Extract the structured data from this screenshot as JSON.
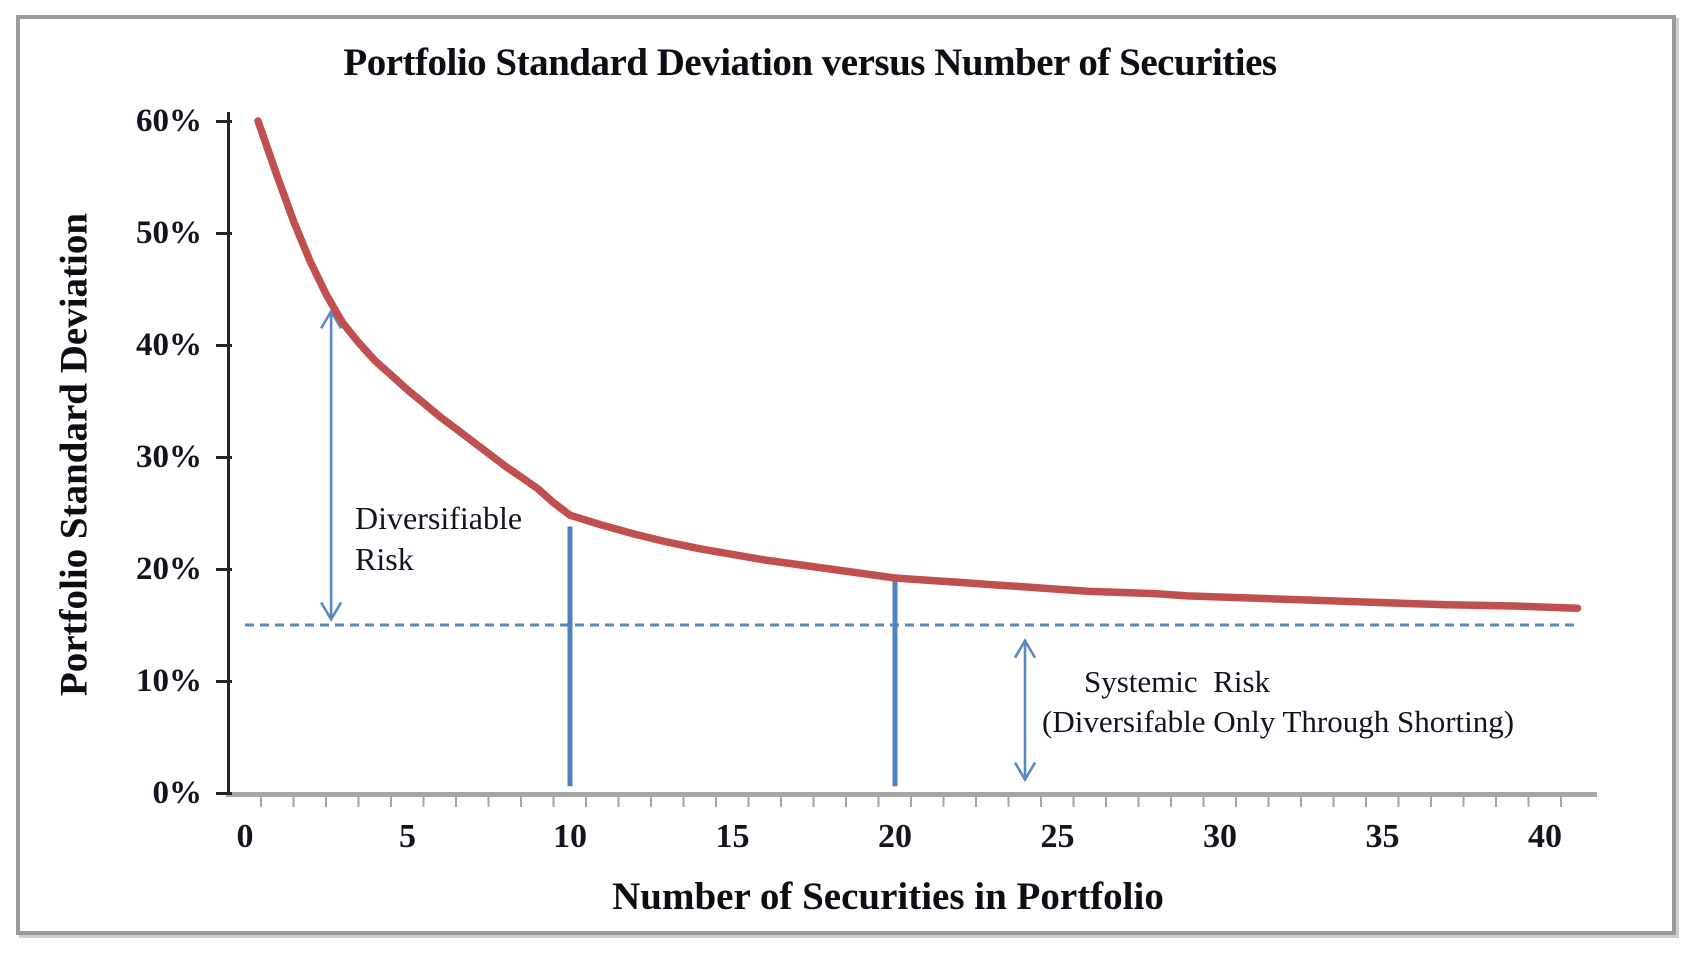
{
  "chart_data": {
    "type": "line",
    "title": "Portfolio Standard Deviation versus Number of Securities",
    "xlabel": "Number of Securities in Portfolio",
    "ylabel": "Portfolio Standard Deviation",
    "xlim": [
      0,
      41.6
    ],
    "ylim": [
      0,
      60
    ],
    "grid": false,
    "legend": false,
    "x_ticks": [
      0,
      5,
      10,
      15,
      20,
      25,
      30,
      35,
      40
    ],
    "x_tick_labels": [
      "0",
      "5",
      "10",
      "15",
      "20",
      "25",
      "30",
      "35",
      "40"
    ],
    "y_ticks": [
      0,
      10,
      20,
      30,
      40,
      50,
      60
    ],
    "y_tick_labels": [
      "0%",
      "10%",
      "20%",
      "30%",
      "40%",
      "50%",
      "60%"
    ],
    "series": [
      {
        "name": "Portfolio standard deviation (%)",
        "color": "#c0504d",
        "points": [
          [
            0.4,
            60.0
          ],
          [
            1,
            55.0
          ],
          [
            1.5,
            51.0
          ],
          [
            2,
            47.5
          ],
          [
            2.5,
            44.5
          ],
          [
            3,
            42.0
          ],
          [
            3.5,
            40.2
          ],
          [
            4,
            38.6
          ],
          [
            4.5,
            37.3
          ],
          [
            5,
            36.0
          ],
          [
            5.5,
            34.8
          ],
          [
            6,
            33.6
          ],
          [
            6.5,
            32.5
          ],
          [
            7,
            31.4
          ],
          [
            7.5,
            30.3
          ],
          [
            8,
            29.2
          ],
          [
            8.5,
            28.2
          ],
          [
            9,
            27.2
          ],
          [
            9.5,
            25.9
          ],
          [
            10,
            24.8
          ],
          [
            11,
            23.9
          ],
          [
            12,
            23.1
          ],
          [
            13,
            22.4
          ],
          [
            14,
            21.8
          ],
          [
            15,
            21.3
          ],
          [
            16,
            20.8
          ],
          [
            17,
            20.4
          ],
          [
            18,
            20.0
          ],
          [
            19,
            19.6
          ],
          [
            20,
            19.2
          ],
          [
            21,
            19.0
          ],
          [
            22,
            18.8
          ],
          [
            23,
            18.6
          ],
          [
            24,
            18.4
          ],
          [
            25,
            18.2
          ],
          [
            26,
            18.0
          ],
          [
            27,
            17.9
          ],
          [
            28,
            17.8
          ],
          [
            29,
            17.6
          ],
          [
            30,
            17.5
          ],
          [
            31,
            17.4
          ],
          [
            32,
            17.3
          ],
          [
            33,
            17.2
          ],
          [
            34,
            17.1
          ],
          [
            35,
            17.0
          ],
          [
            36,
            16.9
          ],
          [
            37,
            16.8
          ],
          [
            38,
            16.75
          ],
          [
            39,
            16.7
          ],
          [
            40,
            16.6
          ],
          [
            41,
            16.5
          ]
        ]
      }
    ],
    "systemic_risk_line": {
      "y": 15,
      "style": "dashed",
      "color": "#5b87bd",
      "x_start": 0,
      "x_end": 41
    },
    "vertical_marker_lines": [
      {
        "x": 10,
        "y_from": 0.6,
        "y_to": 23.8,
        "color": "#4f81bd"
      },
      {
        "x": 20,
        "y_from": 0.6,
        "y_to": 19.0,
        "color": "#4f81bd"
      }
    ],
    "double_arrows": [
      {
        "x": 2.65,
        "y_from": 15.5,
        "y_to": 43.0,
        "meaning": "Diversifiable Risk",
        "color": "#5e89be"
      },
      {
        "x": 24.0,
        "y_from": 1.2,
        "y_to": 13.6,
        "meaning": "Systemic Risk",
        "color": "#5e89be"
      }
    ],
    "annotations": {
      "diversifiable_risk": {
        "line1": "Diversifiable",
        "line2": "Risk"
      },
      "systemic_risk": {
        "line1": "Systemic  Risk",
        "line2": "(Diversifable Only Through Shorting)"
      }
    },
    "colors": {
      "curve": "#c0504d",
      "marker_blue": "#4f81bd",
      "dashed_blue": "#5b87bd",
      "arrow_blue": "#5e89be",
      "axis_bar_gray": "#a6a6a6",
      "axis_line_black": "#262626",
      "frame_gray": "#9b9b9b",
      "text": "#0d0d14"
    }
  }
}
